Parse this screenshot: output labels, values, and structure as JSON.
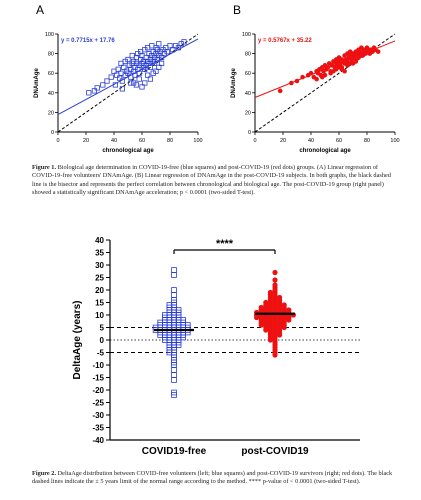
{
  "figure1": {
    "panel_a": {
      "label": "A",
      "equation": "y = 0.7715x + 17.76",
      "xlabel": "chronological age",
      "ylabel": "DNAmAge"
    },
    "panel_b": {
      "label": "B",
      "equation": "y = 0.5767x + 35.22",
      "xlabel": "chronological age",
      "ylabel": "DNAmAge"
    },
    "caption_label": "Figure 1.",
    "caption_text": "Biological age determination in COVID-19-free (blue squares) and post-COVID-19 (red dots) groups. (A) Linear regression of COVID-19-free volunteers' DNAmAge. (B) Linear regression of DNAmAge in the post-COVID-19 subjects. In both graphs, the black dashed line is the bisector and represents the perfect correlation between chronological and biological age. The post-COVID-19 group (right panel) showed a statistically significant DNAmAge acceleration; p < 0.0001 (two-sided T-test)."
  },
  "figure2": {
    "ylabel": "DeltaAge (years)",
    "significance": "****",
    "caption_label": "Figure 2.",
    "caption_text": "DeltaAge distribution between COVID-free volunteers (left; blue squares) and post-COVID-19 survivors (right; red dots). The black dashed lines indicate the ± 5 years limit of the normal range according to the method. **** p-value of < 0.0001 (two-sided T-test)."
  },
  "colors": {
    "blue": "#2b3fd6",
    "red": "#ee1111",
    "black": "#000000"
  },
  "chart_data": [
    {
      "type": "scatter",
      "title": "",
      "panel": "A",
      "xlabel": "chronological age",
      "ylabel": "DNAmAge",
      "xlim": [
        0,
        100
      ],
      "ylim": [
        0,
        100
      ],
      "xticks": [
        "0",
        "20",
        "40",
        "60",
        "80",
        "100"
      ],
      "yticks": [
        "0",
        "20",
        "40",
        "60",
        "80",
        "100"
      ],
      "marker": "blue-open-square",
      "regression": {
        "slope": 0.7715,
        "intercept": 17.76,
        "label": "y = 0.7715x + 17.76"
      },
      "bisector": true,
      "x": [
        22,
        26,
        28,
        32,
        35,
        38,
        40,
        41,
        42,
        43,
        44,
        45,
        45,
        46,
        47,
        48,
        48,
        49,
        50,
        50,
        51,
        52,
        52,
        53,
        53,
        54,
        54,
        55,
        55,
        56,
        56,
        57,
        57,
        58,
        58,
        59,
        59,
        60,
        60,
        61,
        61,
        62,
        62,
        63,
        63,
        64,
        64,
        65,
        65,
        66,
        66,
        67,
        67,
        68,
        68,
        69,
        69,
        70,
        70,
        71,
        71,
        72,
        72,
        73,
        74,
        75,
        76,
        77,
        78,
        80,
        82,
        84,
        86,
        88,
        90,
        52,
        58,
        64,
        70,
        46,
        62,
        68,
        56,
        60,
        74,
        66,
        54,
        72
      ],
      "y": [
        40,
        42,
        45,
        48,
        52,
        56,
        62,
        48,
        58,
        64,
        55,
        60,
        70,
        52,
        66,
        58,
        72,
        62,
        60,
        74,
        68,
        56,
        64,
        70,
        78,
        62,
        72,
        66,
        58,
        70,
        76,
        64,
        80,
        60,
        68,
        74,
        82,
        70,
        78,
        66,
        72,
        64,
        84,
        68,
        76,
        72,
        86,
        70,
        80,
        66,
        74,
        78,
        88,
        72,
        82,
        76,
        70,
        80,
        86,
        74,
        84,
        78,
        90,
        82,
        76,
        84,
        80,
        86,
        82,
        88,
        84,
        88,
        86,
        90,
        92,
        50,
        54,
        58,
        62,
        44,
        50,
        60,
        48,
        46,
        70,
        54,
        50,
        66
      ]
    },
    {
      "type": "scatter",
      "title": "",
      "panel": "B",
      "xlabel": "chronological age",
      "ylabel": "DNAmAge",
      "xlim": [
        0,
        100
      ],
      "ylim": [
        0,
        100
      ],
      "xticks": [
        "0",
        "20",
        "40",
        "60",
        "80",
        "100"
      ],
      "yticks": [
        "0",
        "20",
        "40",
        "60",
        "80",
        "100"
      ],
      "marker": "red-filled-circle",
      "regression": {
        "slope": 0.5767,
        "intercept": 35.22,
        "label": "y = 0.5767x + 35.22"
      },
      "bisector": true,
      "x": [
        18,
        26,
        30,
        34,
        38,
        40,
        42,
        44,
        45,
        46,
        47,
        48,
        49,
        50,
        51,
        52,
        53,
        54,
        55,
        56,
        57,
        58,
        58,
        59,
        60,
        60,
        61,
        62,
        62,
        63,
        64,
        64,
        65,
        66,
        66,
        67,
        68,
        68,
        69,
        70,
        70,
        71,
        72,
        72,
        73,
        74,
        74,
        75,
        76,
        76,
        77,
        78,
        78,
        79,
        80,
        80,
        81,
        82,
        83,
        84,
        85,
        86,
        88,
        50,
        56,
        62,
        66,
        70,
        74,
        60,
        64,
        68,
        72,
        76,
        54,
        58,
        44,
        48
      ],
      "y": [
        42,
        50,
        52,
        56,
        58,
        60,
        56,
        62,
        60,
        64,
        58,
        66,
        62,
        68,
        64,
        66,
        70,
        62,
        68,
        72,
        66,
        70,
        74,
        68,
        72,
        76,
        70,
        66,
        74,
        72,
        78,
        70,
        74,
        80,
        72,
        76,
        78,
        82,
        74,
        76,
        80,
        78,
        82,
        74,
        80,
        84,
        78,
        82,
        80,
        86,
        78,
        82,
        84,
        80,
        86,
        82,
        84,
        80,
        84,
        82,
        86,
        84,
        82,
        58,
        62,
        64,
        68,
        70,
        76,
        66,
        62,
        70,
        72,
        78,
        60,
        64,
        54,
        56
      ]
    },
    {
      "type": "scatter",
      "title": "",
      "chart": "DeltaAge distribution",
      "ylabel": "DeltaAge (years)",
      "ylim": [
        -40,
        40
      ],
      "yticks": [
        "40",
        "35",
        "30",
        "25",
        "20",
        "15",
        "10",
        "5",
        "0",
        "-5",
        "-10",
        "-15",
        "-20",
        "-25",
        "-30",
        "-35",
        "-40"
      ],
      "categories": [
        "COVID19-free",
        "post-COVID19"
      ],
      "reference_lines": {
        "dashed": [
          5,
          -5
        ],
        "dotted": [
          0
        ]
      },
      "series": [
        {
          "category": "COVID19-free",
          "marker": "blue-open-square",
          "mean": 4.0,
          "values": [
            28,
            26,
            20,
            18,
            16,
            15,
            14,
            14,
            13,
            13,
            12,
            12,
            12,
            11,
            11,
            11,
            10,
            10,
            10,
            10,
            9,
            9,
            9,
            9,
            8,
            8,
            8,
            8,
            8,
            7,
            7,
            7,
            7,
            7,
            7,
            6,
            6,
            6,
            6,
            6,
            6,
            6,
            5,
            5,
            5,
            5,
            5,
            5,
            5,
            5,
            4,
            4,
            4,
            4,
            4,
            4,
            4,
            4,
            3,
            3,
            3,
            3,
            3,
            3,
            3,
            2,
            2,
            2,
            2,
            2,
            2,
            1,
            1,
            1,
            1,
            1,
            0,
            0,
            0,
            0,
            -1,
            -1,
            -1,
            -2,
            -2,
            -2,
            -3,
            -3,
            -4,
            -4,
            -5,
            -5,
            -6,
            -7,
            -8,
            -9,
            -10,
            -12,
            -14,
            -16,
            -21,
            -22
          ]
        },
        {
          "category": "post-COVID19",
          "marker": "red-filled-circle",
          "mean": 10.5,
          "values": [
            27,
            24,
            22,
            21,
            20,
            19,
            19,
            18,
            18,
            17,
            17,
            17,
            16,
            16,
            16,
            15,
            15,
            15,
            15,
            14,
            14,
            14,
            14,
            14,
            13,
            13,
            13,
            13,
            13,
            13,
            12,
            12,
            12,
            12,
            12,
            12,
            12,
            11,
            11,
            11,
            11,
            11,
            11,
            11,
            11,
            10,
            10,
            10,
            10,
            10,
            10,
            10,
            10,
            10,
            9,
            9,
            9,
            9,
            9,
            9,
            9,
            9,
            8,
            8,
            8,
            8,
            8,
            8,
            8,
            7,
            7,
            7,
            7,
            7,
            7,
            6,
            6,
            6,
            6,
            6,
            6,
            5,
            5,
            5,
            5,
            5,
            4,
            4,
            4,
            4,
            3,
            3,
            3,
            2,
            2,
            2,
            1,
            1,
            0,
            0,
            -1,
            -2,
            -3,
            -4,
            -5,
            -6
          ]
        }
      ]
    }
  ]
}
